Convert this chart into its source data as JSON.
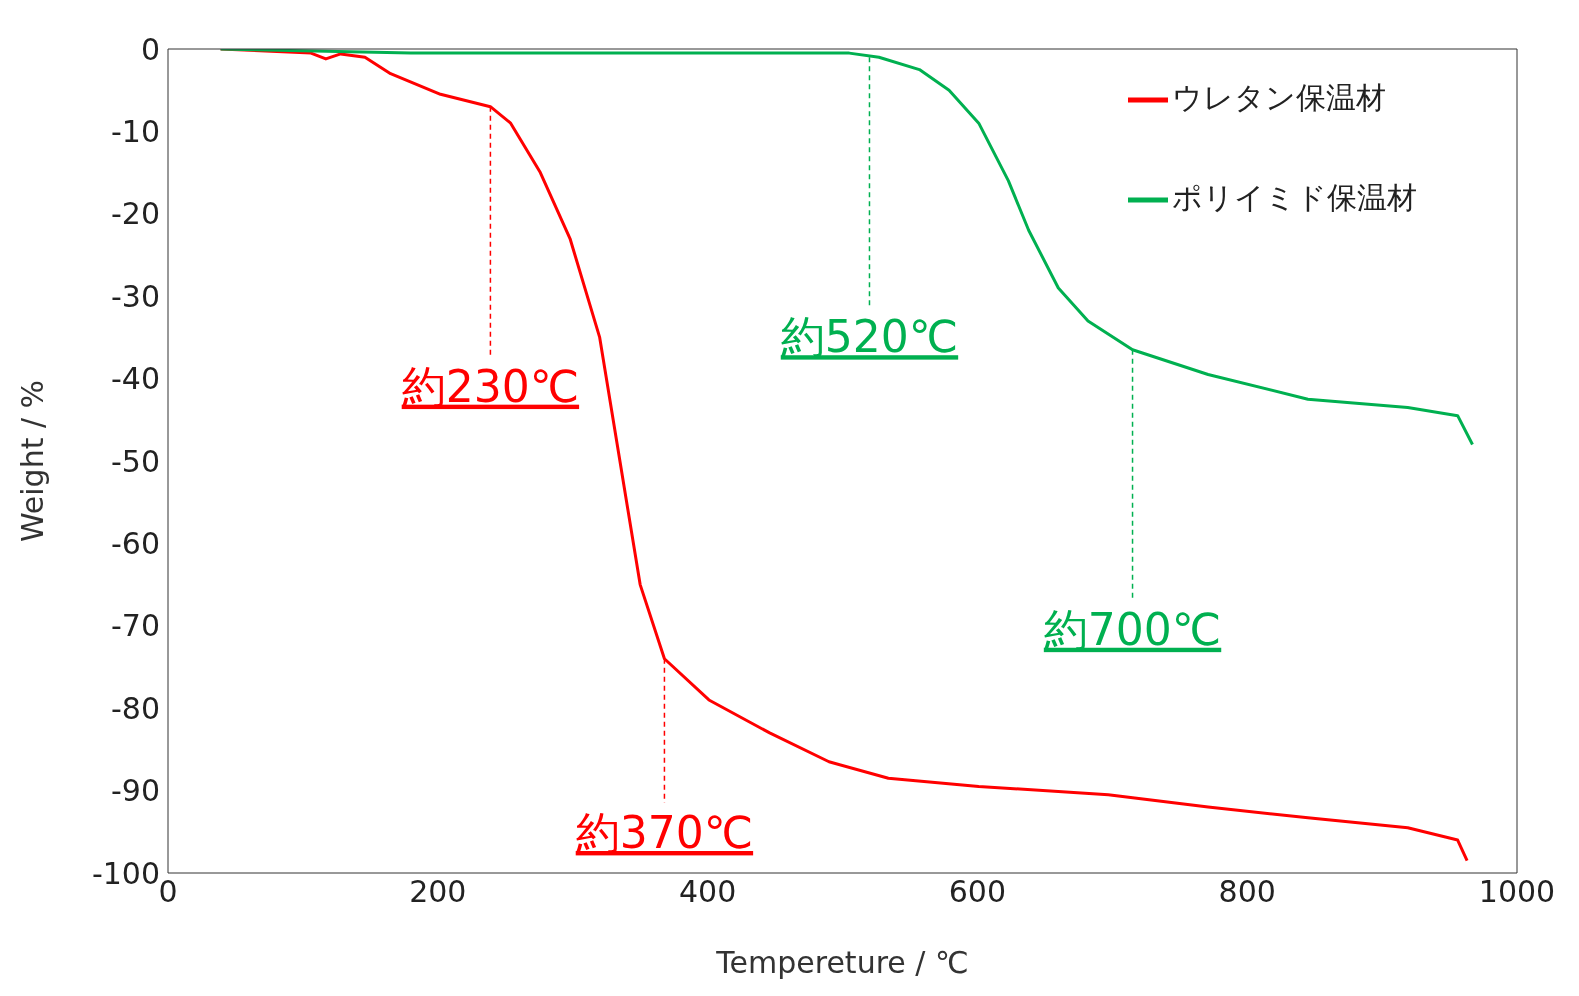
{
  "chart_data": {
    "type": "line",
    "xlabel": "Tempereture / ℃",
    "ylabel": "Weight / %",
    "xlim": [
      0,
      1000
    ],
    "xticks": [
      0,
      200,
      400,
      600,
      800,
      1000
    ],
    "ylim": [
      -100,
      0
    ],
    "yticks": [
      0,
      -10,
      -20,
      -30,
      -40,
      -50,
      -60,
      -70,
      -80,
      -90,
      -100
    ],
    "legend": "top right",
    "marker": "none",
    "line_style": "solid",
    "series": [
      {
        "name": "ウレタン保温材",
        "color": "#ff0000",
        "x": [
          39,
          106,
          117,
          128,
          146,
          165,
          202,
          239,
          254,
          276,
          298,
          320,
          335,
          350,
          368,
          401,
          446,
          490,
          534,
          601,
          697,
          771,
          845,
          919,
          956,
          963
        ],
        "values": [
          0,
          -0.5,
          -1.2,
          -0.6,
          -1,
          -3,
          -5.5,
          -7,
          -9,
          -15,
          -23,
          -35,
          -50,
          -65,
          -74,
          -79,
          -83,
          -86.5,
          -88.5,
          -89.5,
          -90.5,
          -92,
          -93.3,
          -94.5,
          -96,
          -98.5
        ]
      },
      {
        "name": "ポリイミド保温材",
        "color": "#00b050",
        "x": [
          39,
          180,
          505,
          527,
          557,
          579,
          601,
          623,
          638,
          660,
          682,
          715,
          771,
          845,
          919,
          956,
          967
        ],
        "values": [
          0,
          -0.5,
          -0.5,
          -1,
          -2.5,
          -5,
          -9,
          -16,
          -22,
          -29,
          -33,
          -36.5,
          -39.5,
          -42.5,
          -43.5,
          -44.5,
          -48
        ]
      }
    ],
    "annotations": [
      {
        "text": "約230℃",
        "x": 239,
        "y": -7
      },
      {
        "text": "約370℃",
        "x": 368,
        "y": -74
      },
      {
        "text": "約520℃",
        "x": 520,
        "y": -1
      },
      {
        "text": "約700℃",
        "x": 715,
        "y": -36.5
      }
    ]
  }
}
